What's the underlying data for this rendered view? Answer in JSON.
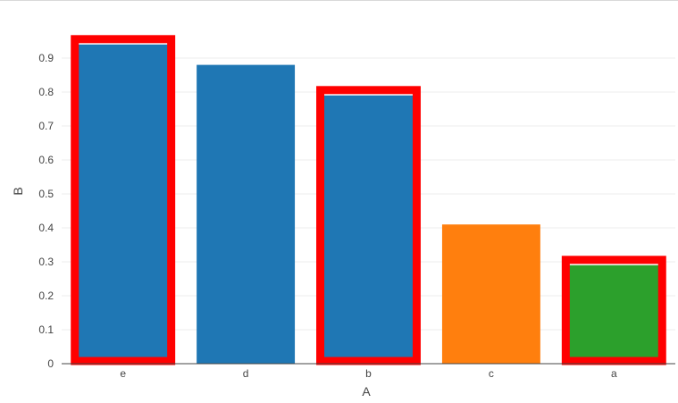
{
  "chart_data": {
    "type": "bar",
    "categories": [
      "e",
      "d",
      "b",
      "c",
      "a"
    ],
    "values": [
      0.94,
      0.88,
      0.79,
      0.41,
      0.29
    ],
    "bar_colors": [
      "#1f77b4",
      "#1f77b4",
      "#1f77b4",
      "#ff7f0e",
      "#2ca02c"
    ],
    "highlight_outline": [
      true,
      false,
      true,
      false,
      true
    ],
    "outline_color": "#ff0000",
    "xlabel": "A",
    "ylabel": "B",
    "ylim": [
      0,
      0.97
    ],
    "yticks": [
      0,
      0.1,
      0.2,
      0.3,
      0.4,
      0.5,
      0.6,
      0.7,
      0.8,
      0.9
    ],
    "ytick_labels": [
      "0",
      "0.1",
      "0.2",
      "0.3",
      "0.4",
      "0.5",
      "0.6",
      "0.7",
      "0.8",
      "0.9"
    ],
    "grid": true,
    "legend": false
  }
}
